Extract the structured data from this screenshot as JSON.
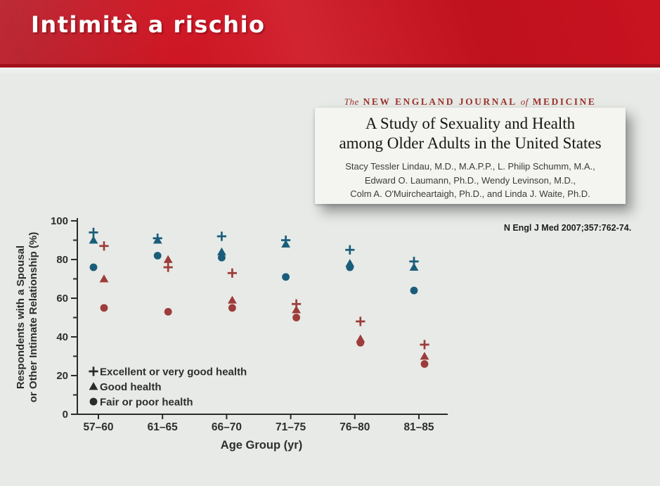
{
  "header": {
    "title": "Intimità a rischio"
  },
  "article": {
    "masthead": {
      "the": "The",
      "journal": "NEW ENGLAND JOURNAL",
      "of": "of",
      "medicine": "MEDICINE"
    },
    "title_line1": "A Study of Sexuality and Health",
    "title_line2": "among Older Adults in the United States",
    "authors": [
      "Stacy Tessler Lindau, M.D., M.A.P.P., L. Philip Schumm, M.A.,",
      "Edward O. Laumann, Ph.D., Wendy Levinson, M.D.,",
      "Colm A. O'Muircheartaigh, Ph.D., and Linda J. Waite, Ph.D."
    ],
    "citation": "N Engl J Med 2007;357:762-74."
  },
  "chart_data": {
    "type": "scatter",
    "title": "",
    "xlabel": "Age Group (yr)",
    "ylabel_line1": "Respondents with a Spousal",
    "ylabel_line2": "or Other Intimate Relationship (%)",
    "categories": [
      "57–60",
      "61–65",
      "66–70",
      "71–75",
      "76–80",
      "81–85"
    ],
    "ylim": [
      0,
      100
    ],
    "yticks": [
      0,
      20,
      40,
      60,
      80,
      100
    ],
    "yticks_minor": [
      10,
      30,
      50,
      70,
      90
    ],
    "grid": false,
    "legend_position": "inside-bottom-left",
    "legend_color": "#2a2a2a",
    "legend": [
      {
        "marker": "plus",
        "label": "Excellent or very good health"
      },
      {
        "marker": "triangle",
        "label": "Good health"
      },
      {
        "marker": "circle",
        "label": "Fair or poor health"
      }
    ],
    "series": [
      {
        "name": "blue-excellent-or-very-good",
        "marker": "plus",
        "color": "#1a5d7b",
        "group": "left",
        "values": [
          94,
          91,
          92,
          90,
          85,
          79
        ]
      },
      {
        "name": "blue-good",
        "marker": "triangle",
        "color": "#1a5d7b",
        "group": "left",
        "values": [
          90,
          90,
          84,
          88,
          78,
          76
        ]
      },
      {
        "name": "blue-fair-or-poor",
        "marker": "circle",
        "color": "#1a5d7b",
        "group": "left",
        "values": [
          76,
          82,
          81,
          71,
          76,
          64
        ]
      },
      {
        "name": "red-excellent-or-very-good",
        "marker": "plus",
        "color": "#9d3c3a",
        "group": "right",
        "values": [
          87,
          76,
          73,
          57,
          48,
          36
        ]
      },
      {
        "name": "red-good",
        "marker": "triangle",
        "color": "#9d3c3a",
        "group": "right",
        "values": [
          70,
          80,
          59,
          54,
          39,
          30
        ]
      },
      {
        "name": "red-fair-or-poor",
        "marker": "circle",
        "color": "#9d3c3a",
        "group": "right",
        "values": [
          55,
          53,
          55,
          50,
          37,
          26
        ]
      }
    ],
    "axis_color": "#2b2b2b",
    "label_color": "#2e2e2c"
  }
}
